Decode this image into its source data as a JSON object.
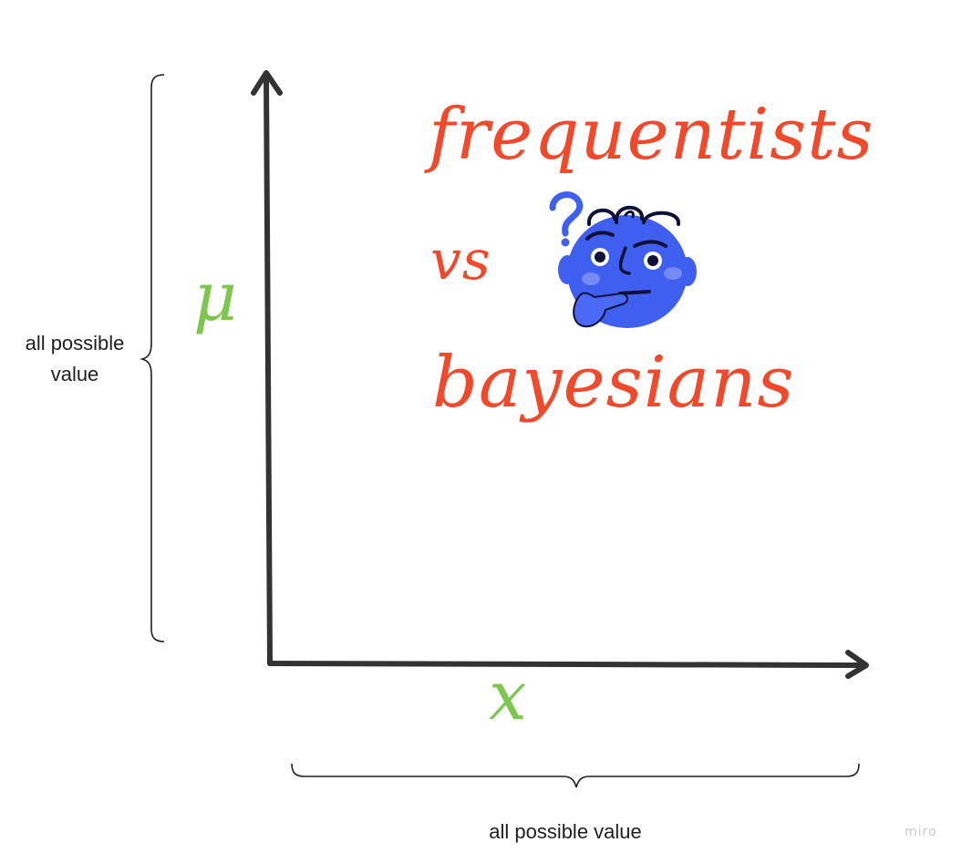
{
  "title": {
    "line1": "frequentists",
    "line2": "vs",
    "line3": "bayesians"
  },
  "axes": {
    "y_variable": "μ",
    "x_variable": "x"
  },
  "braces": {
    "y_label": "all possible\nvalue",
    "x_label": "all possible value"
  },
  "emoji": {
    "icon": "thinking-face-with-question-mark-icon"
  },
  "brand": {
    "watermark": "miro"
  },
  "colors": {
    "title": "#ee4a2b",
    "variables": "#7cc84f",
    "axes": "#333333",
    "emoji_face": "#3f5ff0",
    "emoji_outline": "#0e1038",
    "text": "#1f1f1f"
  }
}
